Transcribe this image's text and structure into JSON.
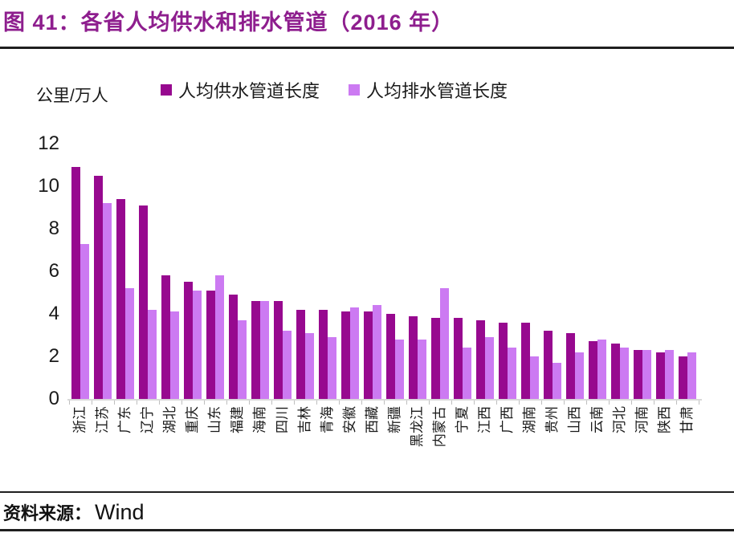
{
  "figure": {
    "title": "图 41：各省人均供水和排水管道（2016 年）",
    "source_label": "资料来源：",
    "source_value": "Wind"
  },
  "chart_data": {
    "type": "bar",
    "title": "各省人均供水和排水管道（2016年）",
    "unit_label": "公里/万人",
    "ylabel": "公里/万人",
    "xlabel": "",
    "ylim": [
      0,
      12
    ],
    "yticks": [
      0,
      2,
      4,
      6,
      8,
      10,
      12
    ],
    "grid": false,
    "legend_position": "top",
    "categories": [
      "浙江",
      "江苏",
      "广东",
      "辽宁",
      "湖北",
      "重庆",
      "山东",
      "福建",
      "海南",
      "四川",
      "吉林",
      "青海",
      "安徽",
      "西藏",
      "新疆",
      "黑龙江",
      "内蒙古",
      "宁夏",
      "江西",
      "广西",
      "湖南",
      "贵州",
      "山西",
      "云南",
      "河北",
      "河南",
      "陕西",
      "甘肃"
    ],
    "series": [
      {
        "name": "人均供水管道长度",
        "color": "#97098F",
        "values": [
          10.9,
          10.5,
          9.4,
          9.1,
          5.8,
          5.5,
          5.1,
          4.9,
          4.6,
          4.6,
          4.2,
          4.2,
          4.1,
          4.1,
          4.0,
          3.9,
          3.8,
          3.8,
          3.7,
          3.6,
          3.6,
          3.2,
          3.1,
          2.7,
          2.6,
          2.3,
          2.2,
          2.0
        ]
      },
      {
        "name": "人均排水管道长度",
        "color": "#CC7AF2",
        "values": [
          7.3,
          9.2,
          5.2,
          4.2,
          4.1,
          5.1,
          5.8,
          3.7,
          4.6,
          3.2,
          3.1,
          2.9,
          4.3,
          4.4,
          2.8,
          2.8,
          5.2,
          2.4,
          2.9,
          2.4,
          2.0,
          1.7,
          2.2,
          2.8,
          2.4,
          2.3,
          2.3,
          2.2
        ]
      }
    ]
  }
}
